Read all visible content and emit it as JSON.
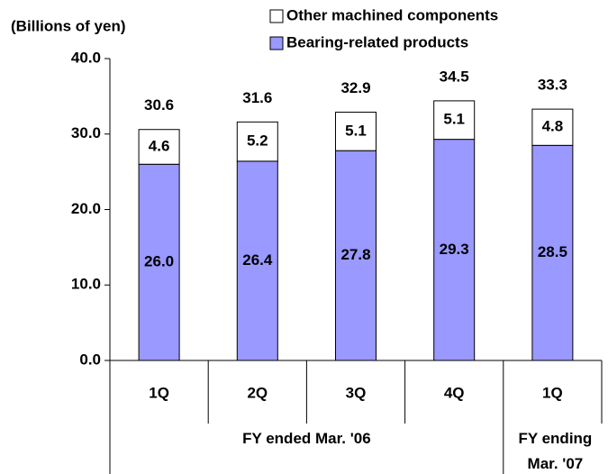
{
  "chart_data": {
    "type": "stacked-bar",
    "y_axis_label": "(Billions of yen)",
    "categories": [
      "1Q",
      "2Q",
      "3Q",
      "4Q",
      "1Q"
    ],
    "group_labels": [
      "FY ended Mar. '06",
      "FY ending Mar. '07"
    ],
    "series": [
      {
        "name": "Bearing-related products",
        "color": "#9999ff",
        "values": [
          26.0,
          26.4,
          27.8,
          29.3,
          28.5
        ],
        "value_labels": [
          "26.0",
          "26.4",
          "27.8",
          "29.3",
          "28.5"
        ]
      },
      {
        "name": "Other machined components",
        "color": "#ffffff",
        "values": [
          4.6,
          5.2,
          5.1,
          5.1,
          4.8
        ]
      }
    ],
    "totals": [
      30.6,
      31.6,
      32.9,
      34.5,
      33.3
    ],
    "ylim": [
      0,
      40
    ],
    "yticks": [
      {
        "value": 0,
        "label": "0.0"
      },
      {
        "value": 10,
        "label": "10.0"
      },
      {
        "value": 20,
        "label": "20.0"
      },
      {
        "value": 30,
        "label": "30.0"
      },
      {
        "value": 40,
        "label": "40.0"
      }
    ]
  }
}
